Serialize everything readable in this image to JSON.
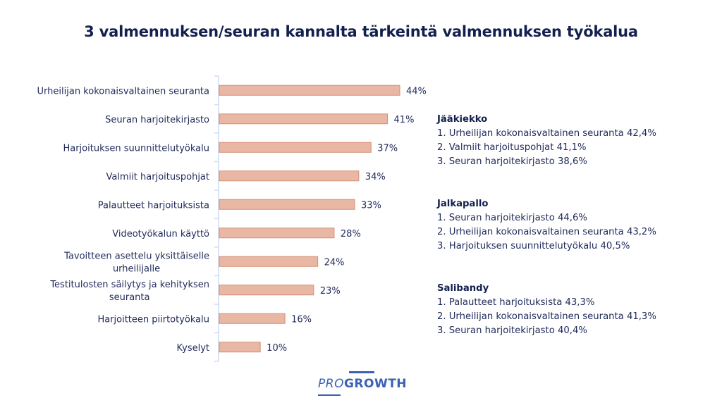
{
  "title": "3 valmennuksen/seuran kannalta tärkeintä valmennuksen työkalua",
  "chart_data": {
    "type": "bar",
    "orientation": "horizontal",
    "title": "3 valmennuksen/seuran kannalta tärkeintä valmennuksen työkalua",
    "xlabel": "",
    "ylabel": "",
    "xlim": [
      0,
      50
    ],
    "grid": false,
    "categories": [
      [
        "Urheilijan kokonaisvaltainen seuranta"
      ],
      [
        "Seuran harjoitekirjasto"
      ],
      [
        "Harjoituksen suunnittelutyökalu"
      ],
      [
        "Valmiit harjoituspohjat"
      ],
      [
        "Palautteet harjoituksista"
      ],
      [
        "Videotyökalun käyttö"
      ],
      [
        "Tavoitteen asettelu yksittäiselle",
        "urheilijalle"
      ],
      [
        "Testitulosten säilytys ja kehityksen",
        "seuranta"
      ],
      [
        "Harjoitteen piirtotyökalu"
      ],
      [
        "Kyselyt"
      ]
    ],
    "values": [
      44,
      41,
      37,
      34,
      33,
      28,
      24,
      23,
      16,
      10
    ],
    "value_labels": [
      "44%",
      "41%",
      "37%",
      "34%",
      "33%",
      "28%",
      "24%",
      "23%",
      "16%",
      "10%"
    ],
    "colors": {
      "bar_fill": "#e8b8a4",
      "bar_stroke": "#d68e74",
      "axis": "#cfdcf2"
    }
  },
  "sports": [
    {
      "name": "Jääkiekko",
      "items": [
        "1. Urheilijan kokonaisvaltainen seuranta 42,4%",
        "2. Valmiit harjoituspohjat 41,1%",
        "3. Seuran harjoitekirjasto 38,6%"
      ]
    },
    {
      "name": "Jalkapallo",
      "items": [
        "1. Seuran harjoitekirjasto 44,6%",
        "2. Urheilijan kokonaisvaltainen seuranta 43,2%",
        "3. Harjoituksen suunnittelutyökalu 40,5%"
      ]
    },
    {
      "name": "Salibandy",
      "items": [
        "1. Palautteet harjoituksista 43,3%",
        "2. Urheilijan kokonaisvaltainen seuranta 41,3%",
        "3. Seuran harjoitekirjasto 40,4%"
      ]
    }
  ],
  "logo": {
    "pro": "PRO",
    "growth": "GROWTH"
  }
}
